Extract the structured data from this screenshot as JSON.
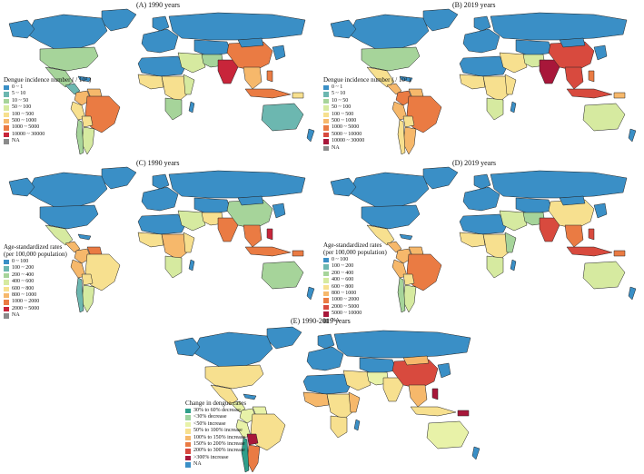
{
  "panels": [
    {
      "title": "(A) 1990 years",
      "legend_title": "Dengue incidence number ( / 10³ )",
      "legend": [
        {
          "label": "0 ~ 1",
          "color": "#3a8fc6"
        },
        {
          "label": "5 ~ 10",
          "color": "#6cb7b0"
        },
        {
          "label": "10 ~ 50",
          "color": "#a6d49a"
        },
        {
          "label": "50 ~ 100",
          "color": "#d6eaa0"
        },
        {
          "label": "100 ~ 500",
          "color": "#f7e08f"
        },
        {
          "label": "500 ~ 1000",
          "color": "#f6b86b"
        },
        {
          "label": "1000 ~ 5000",
          "color": "#ea7b43"
        },
        {
          "label": "10000 ~ 30000",
          "color": "#c8253a"
        },
        {
          "label": "NA",
          "color": "#8a8a8a"
        }
      ]
    },
    {
      "title": "(B) 2019 years",
      "legend_title": "Dengue incidence number ( / 10³ )",
      "legend": [
        {
          "label": "0 ~ 1",
          "color": "#3a8fc6"
        },
        {
          "label": "5 ~ 10",
          "color": "#6cb7b0"
        },
        {
          "label": "10 ~ 50",
          "color": "#a6d49a"
        },
        {
          "label": "50 ~ 100",
          "color": "#d6eaa0"
        },
        {
          "label": "100 ~ 500",
          "color": "#f7e08f"
        },
        {
          "label": "500 ~ 1000",
          "color": "#f6b86b"
        },
        {
          "label": "1000 ~ 5000",
          "color": "#ea7b43"
        },
        {
          "label": "5000 ~ 10000",
          "color": "#d84a3e"
        },
        {
          "label": "10000 ~ 30000",
          "color": "#a8173a"
        },
        {
          "label": "NA",
          "color": "#8a8a8a"
        }
      ]
    },
    {
      "title": "(C) 1990 years",
      "legend_title": "Age-standardized rates\n(per 100,000 population)",
      "legend": [
        {
          "label": "0 ~ 100",
          "color": "#3a8fc6"
        },
        {
          "label": "100 ~ 200",
          "color": "#6cb7b0"
        },
        {
          "label": "200 ~ 400",
          "color": "#a6d49a"
        },
        {
          "label": "400 ~ 600",
          "color": "#d6eaa0"
        },
        {
          "label": "600 ~ 800",
          "color": "#f7e08f"
        },
        {
          "label": "800 ~ 1000",
          "color": "#f6b86b"
        },
        {
          "label": "1000 ~ 2000",
          "color": "#ea7b43"
        },
        {
          "label": "2000 ~ 5000",
          "color": "#c8253a"
        },
        {
          "label": "NA",
          "color": "#8a8a8a"
        }
      ]
    },
    {
      "title": "(D) 2019 years",
      "legend_title": "Age-standardized rates\n(per 100,000 population)",
      "legend": [
        {
          "label": "0 ~ 100",
          "color": "#3a8fc6"
        },
        {
          "label": "100 ~ 200",
          "color": "#6cb7b0"
        },
        {
          "label": "200 ~ 400",
          "color": "#a6d49a"
        },
        {
          "label": "400 ~ 600",
          "color": "#d6eaa0"
        },
        {
          "label": "600 ~ 800",
          "color": "#f7e08f"
        },
        {
          "label": "800 ~ 1000",
          "color": "#f6b86b"
        },
        {
          "label": "1000 ~ 2000",
          "color": "#ea7b43"
        },
        {
          "label": "2000 ~ 5000",
          "color": "#d84a3e"
        },
        {
          "label": "5000 ~ 10000",
          "color": "#a8173a"
        },
        {
          "label": "NA",
          "color": "#8a8a8a"
        }
      ]
    },
    {
      "title": "(E) 1990-2019 years",
      "legend_title": "Change in dengue cases",
      "legend": [
        {
          "label": "30% to 60% decrease",
          "color": "#2f9e8a"
        },
        {
          "label": "<30% decrease",
          "color": "#9fd3a0"
        },
        {
          "label": "<50% increase",
          "color": "#e8f2a8"
        },
        {
          "label": "50% to 100% increase",
          "color": "#f7e08f"
        },
        {
          "label": "100% to 150% increase",
          "color": "#f6b86b"
        },
        {
          "label": "150% to 200% increase",
          "color": "#ea7b43"
        },
        {
          "label": "200% to 300% increase",
          "color": "#d84a3e"
        },
        {
          "label": ">300% increase",
          "color": "#a8173a"
        },
        {
          "label": "NA",
          "color": "#3a8fc6"
        }
      ]
    }
  ]
}
